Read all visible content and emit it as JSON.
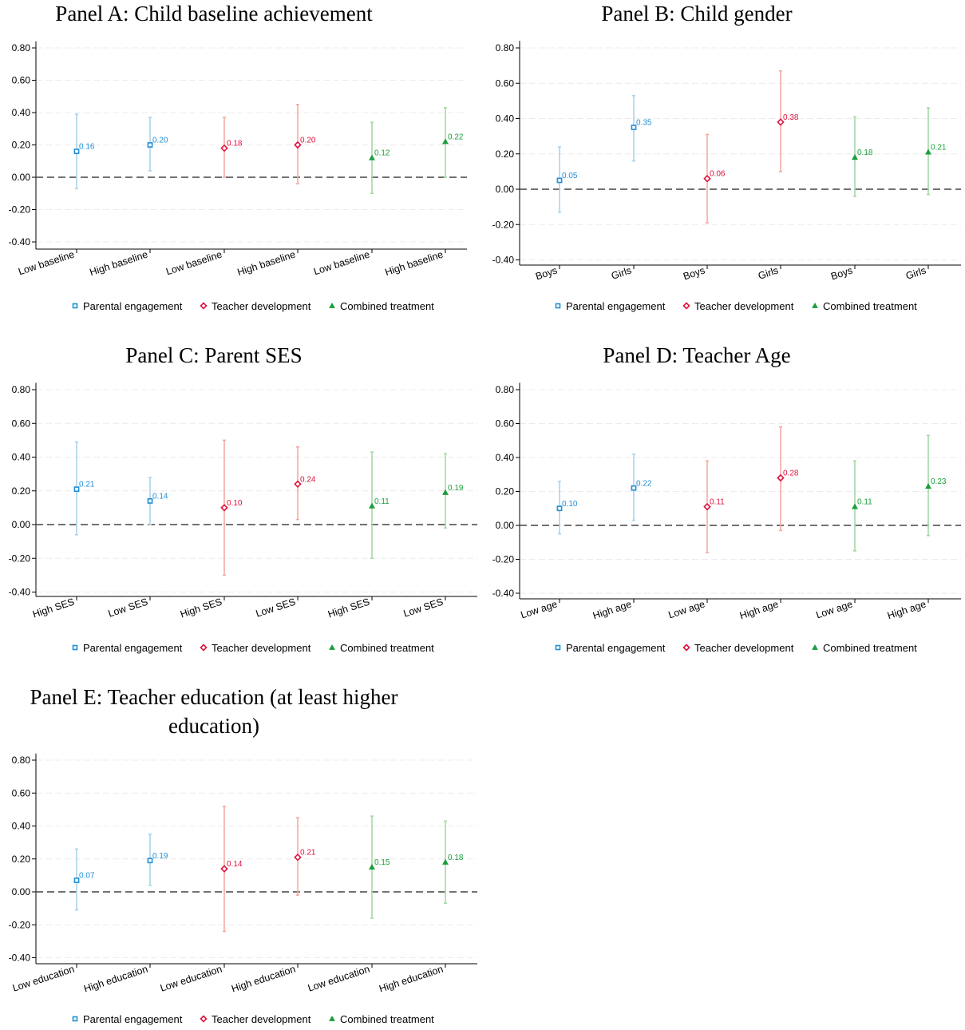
{
  "legend": {
    "series": [
      {
        "name": "Parental engagement",
        "marker": "square",
        "color": "#1f8fd6",
        "ci_color": "#a9d4ef"
      },
      {
        "name": "Teacher development",
        "marker": "diamond",
        "color": "#e0113c",
        "ci_color": "#f7a9a3"
      },
      {
        "name": "Combined treatment",
        "marker": "triangle",
        "color": "#1a9e3a",
        "ci_color": "#a6d8a6"
      }
    ]
  },
  "chart_data": [
    {
      "type": "scatter",
      "title": "Panel A: Child baseline achievement",
      "categories": [
        "Low baseline",
        "High baseline",
        "Low baseline",
        "High baseline",
        "Low baseline",
        "High baseline"
      ],
      "series_index": [
        0,
        0,
        1,
        1,
        2,
        2
      ],
      "values": [
        0.16,
        0.2,
        0.18,
        0.2,
        0.12,
        0.22
      ],
      "labels": [
        "0.16",
        "0.20",
        "0.18",
        "0.20",
        "0.12",
        "0.22"
      ],
      "ci_low": [
        -0.07,
        0.04,
        0.0,
        -0.04,
        -0.1,
        0.0
      ],
      "ci_high": [
        0.39,
        0.37,
        0.37,
        0.45,
        0.34,
        0.43
      ],
      "yticks": [
        "0.80",
        "0.60",
        "0.40",
        "0.20",
        "0.00",
        "-0.20",
        "-0.40"
      ],
      "ylim": [
        -0.42,
        0.84
      ],
      "grid": true,
      "legend": "bottom"
    },
    {
      "type": "scatter",
      "title": "Panel B: Child gender",
      "categories": [
        "Boys",
        "Girls",
        "Boys",
        "Girls",
        "Boys",
        "Girls"
      ],
      "series_index": [
        0,
        0,
        1,
        1,
        2,
        2
      ],
      "values": [
        0.05,
        0.35,
        0.06,
        0.38,
        0.18,
        0.21
      ],
      "labels": [
        "0.05",
        "0.35",
        "0.06",
        "0.38",
        "0.18",
        "0.21"
      ],
      "ci_low": [
        -0.13,
        0.16,
        -0.19,
        0.1,
        -0.04,
        -0.03
      ],
      "ci_high": [
        0.24,
        0.53,
        0.31,
        0.67,
        0.41,
        0.46
      ],
      "yticks": [
        "0.80",
        "0.60",
        "0.40",
        "0.20",
        "0.00",
        "-0.20",
        "-0.40"
      ],
      "ylim": [
        -0.42,
        0.84
      ],
      "grid": true,
      "legend": "bottom"
    },
    {
      "type": "scatter",
      "title": "Panel C: Parent SES",
      "categories": [
        "High SES",
        "Low SES",
        "High SES",
        "Low SES",
        "High SES",
        "Low SES"
      ],
      "series_index": [
        0,
        0,
        1,
        1,
        2,
        2
      ],
      "values": [
        0.21,
        0.14,
        0.1,
        0.24,
        0.11,
        0.19
      ],
      "labels": [
        "0.21",
        "0.14",
        "0.10",
        "0.24",
        "0.11",
        "0.19"
      ],
      "ci_low": [
        -0.06,
        0.0,
        -0.3,
        0.03,
        -0.2,
        -0.02
      ],
      "ci_high": [
        0.49,
        0.28,
        0.5,
        0.46,
        0.43,
        0.42
      ],
      "yticks": [
        "0.80",
        "0.60",
        "0.40",
        "0.20",
        "0.00",
        "-0.20",
        "-0.40"
      ],
      "ylim": [
        -0.42,
        0.84
      ],
      "grid": true,
      "legend": "bottom"
    },
    {
      "type": "scatter",
      "title": "Panel D: Teacher Age",
      "categories": [
        "Low age",
        "High age",
        "Low age",
        "High age",
        "Low age",
        "High age"
      ],
      "series_index": [
        0,
        0,
        1,
        1,
        2,
        2
      ],
      "values": [
        0.1,
        0.22,
        0.11,
        0.28,
        0.11,
        0.23
      ],
      "labels": [
        "0.10",
        "0.22",
        "0.11",
        "0.28",
        "0.11",
        "0.23"
      ],
      "ci_low": [
        -0.05,
        0.03,
        -0.16,
        -0.03,
        -0.15,
        -0.06
      ],
      "ci_high": [
        0.26,
        0.42,
        0.38,
        0.58,
        0.38,
        0.53
      ],
      "yticks": [
        "0.80",
        "0.60",
        "0.40",
        "0.20",
        "0.00",
        "-0.20",
        "-0.40"
      ],
      "ylim": [
        -0.42,
        0.84
      ],
      "grid": true,
      "legend": "bottom"
    },
    {
      "type": "scatter",
      "title": "Panel E: Teacher education (at least higher education)",
      "title_lines": [
        "Panel E: Teacher education (at least higher",
        "education)"
      ],
      "categories": [
        "Low education",
        "High education",
        "Low education",
        "High education",
        "Low education",
        "High education"
      ],
      "series_index": [
        0,
        0,
        1,
        1,
        2,
        2
      ],
      "values": [
        0.07,
        0.19,
        0.14,
        0.21,
        0.15,
        0.18
      ],
      "labels": [
        "0.07",
        "0.19",
        "0.14",
        "0.21",
        "0.15",
        "0.18"
      ],
      "ci_low": [
        -0.11,
        0.04,
        -0.24,
        -0.02,
        -0.16,
        -0.07
      ],
      "ci_high": [
        0.26,
        0.35,
        0.52,
        0.45,
        0.46,
        0.43
      ],
      "yticks": [
        "0.80",
        "0.60",
        "0.40",
        "0.20",
        "0.00",
        "-0.20",
        "-0.40"
      ],
      "ylim": [
        -0.42,
        0.84
      ],
      "grid": true,
      "legend": "bottom"
    }
  ]
}
